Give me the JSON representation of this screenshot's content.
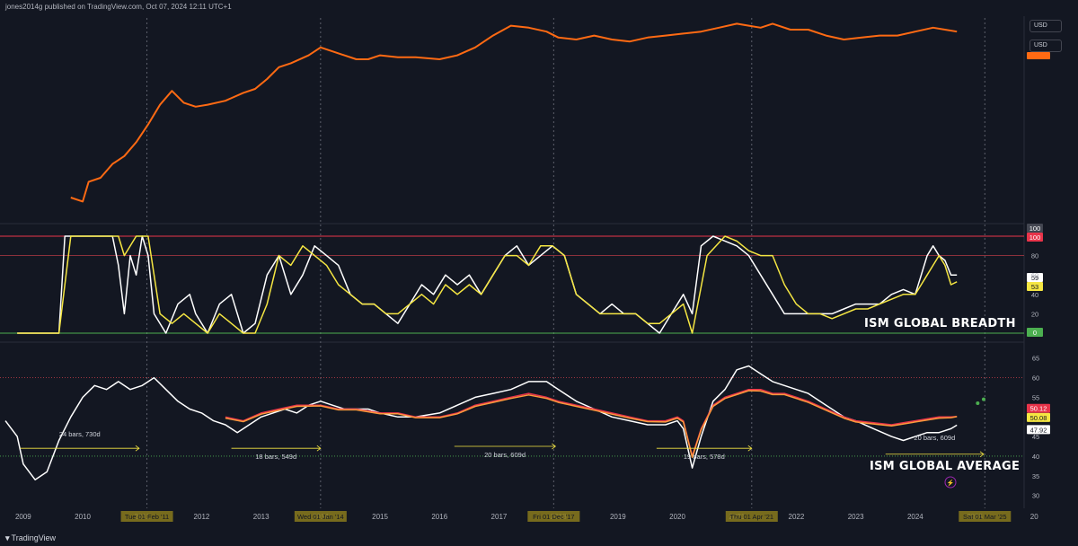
{
  "header": {
    "publisher": "jones2014g published on TradingView.com, Oct 07, 2024 12:11 UTC+1"
  },
  "footer": {
    "logo_text": "TradingView"
  },
  "currency": {
    "top": "USD",
    "second": "USD"
  },
  "colors": {
    "background": "#131722",
    "orange": "#ff6a13",
    "yellow": "#f5e642",
    "white": "#ffffff",
    "red_line": "#e8344a",
    "green_line": "#4caf50"
  },
  "chart_data": [
    {
      "type": "line",
      "panel": "top",
      "title": "",
      "x_range": [
        2008.7,
        2025.8
      ],
      "y_range": [
        0,
        100
      ],
      "series": [
        {
          "color": "#ff6a13",
          "x": [
            2009.8,
            2010.0,
            2010.1,
            2010.3,
            2010.5,
            2010.7,
            2010.9,
            2011.1,
            2011.3,
            2011.5,
            2011.7,
            2011.9,
            2012.1,
            2012.4,
            2012.7,
            2012.9,
            2013.1,
            2013.3,
            2013.5,
            2013.8,
            2014.0,
            2014.2,
            2014.4,
            2014.6,
            2014.8,
            2015.0,
            2015.3,
            2015.6,
            2016.0,
            2016.3,
            2016.6,
            2016.9,
            2017.2,
            2017.5,
            2017.8,
            2018.0,
            2018.3,
            2018.6,
            2018.9,
            2019.2,
            2019.5,
            2019.8,
            2020.1,
            2020.4,
            2020.7,
            2021.0,
            2021.2,
            2021.4,
            2021.6,
            2021.9,
            2022.2,
            2022.5,
            2022.8,
            2023.1,
            2023.4,
            2023.7,
            2024.0,
            2024.3,
            2024.5,
            2024.7
          ],
          "y": [
            10,
            8,
            18,
            20,
            27,
            31,
            38,
            47,
            57,
            64,
            58,
            56,
            57,
            59,
            63,
            65,
            70,
            76,
            78,
            82,
            86,
            84,
            82,
            80,
            80,
            82,
            81,
            81,
            80,
            82,
            86,
            92,
            97,
            96,
            94,
            91,
            90,
            92,
            90,
            89,
            91,
            92,
            93,
            94,
            96,
            98,
            97,
            96,
            98,
            95,
            95,
            92,
            90,
            91,
            92,
            92,
            94,
            96,
            95,
            94
          ]
        }
      ]
    },
    {
      "type": "line",
      "panel": "middle",
      "title": "ISM GLOBAL BREADTH",
      "x_range": [
        2008.7,
        2025.8
      ],
      "y_range": [
        0,
        100
      ],
      "y_ticks": [
        0,
        20,
        40,
        60,
        80,
        100
      ],
      "reference_lines": [
        100,
        80,
        0
      ],
      "series": [
        {
          "color": "#ffffff",
          "x": [
            2008.9,
            2009.4,
            2009.6,
            2009.7,
            2010.0,
            2010.3,
            2010.5,
            2010.6,
            2010.7,
            2010.8,
            2010.9,
            2011.0,
            2011.1,
            2011.2,
            2011.4,
            2011.6,
            2011.8,
            2011.9,
            2012.1,
            2012.3,
            2012.5,
            2012.7,
            2012.9,
            2013.1,
            2013.3,
            2013.5,
            2013.7,
            2013.9,
            2014.1,
            2014.3,
            2014.5,
            2014.7,
            2014.9,
            2015.1,
            2015.3,
            2015.5,
            2015.7,
            2015.9,
            2016.1,
            2016.3,
            2016.5,
            2016.7,
            2016.9,
            2017.1,
            2017.3,
            2017.5,
            2017.7,
            2017.9,
            2018.1,
            2018.3,
            2018.5,
            2018.7,
            2018.9,
            2019.1,
            2019.3,
            2019.5,
            2019.7,
            2019.9,
            2020.1,
            2020.25,
            2020.4,
            2020.6,
            2020.8,
            2021.0,
            2021.2,
            2021.4,
            2021.6,
            2021.8,
            2022.0,
            2022.2,
            2022.4,
            2022.6,
            2022.8,
            2023.0,
            2023.2,
            2023.4,
            2023.6,
            2023.8,
            2024.0,
            2024.1,
            2024.2,
            2024.3,
            2024.4,
            2024.5,
            2024.6,
            2024.7
          ],
          "y": [
            0,
            0,
            0,
            100,
            100,
            100,
            100,
            70,
            20,
            80,
            60,
            100,
            80,
            20,
            0,
            30,
            40,
            20,
            0,
            30,
            40,
            0,
            10,
            60,
            80,
            40,
            60,
            90,
            80,
            70,
            40,
            30,
            30,
            20,
            10,
            30,
            50,
            40,
            60,
            50,
            60,
            40,
            60,
            80,
            90,
            70,
            80,
            90,
            80,
            40,
            30,
            20,
            30,
            20,
            20,
            10,
            0,
            20,
            40,
            20,
            90,
            100,
            95,
            90,
            80,
            60,
            40,
            20,
            20,
            20,
            20,
            20,
            25,
            30,
            30,
            30,
            40,
            45,
            40,
            60,
            80,
            90,
            80,
            75,
            60,
            60
          ]
        },
        {
          "color": "#f5e642",
          "x": [
            2008.9,
            2009.6,
            2009.8,
            2010.0,
            2010.6,
            2010.7,
            2010.9,
            2011.1,
            2011.3,
            2011.5,
            2011.7,
            2011.9,
            2012.1,
            2012.3,
            2012.5,
            2012.7,
            2012.9,
            2013.1,
            2013.3,
            2013.5,
            2013.7,
            2013.9,
            2014.1,
            2014.3,
            2014.5,
            2014.7,
            2014.9,
            2015.1,
            2015.3,
            2015.5,
            2015.7,
            2015.9,
            2016.1,
            2016.3,
            2016.5,
            2016.7,
            2016.9,
            2017.1,
            2017.3,
            2017.5,
            2017.7,
            2017.9,
            2018.1,
            2018.3,
            2018.5,
            2018.7,
            2018.9,
            2019.1,
            2019.3,
            2019.5,
            2019.7,
            2019.9,
            2020.1,
            2020.25,
            2020.5,
            2020.8,
            2021.0,
            2021.2,
            2021.4,
            2021.6,
            2021.8,
            2022.0,
            2022.2,
            2022.4,
            2022.6,
            2022.8,
            2023.0,
            2023.2,
            2023.4,
            2023.6,
            2023.8,
            2024.0,
            2024.1,
            2024.2,
            2024.3,
            2024.4,
            2024.5,
            2024.6,
            2024.7
          ],
          "y": [
            0,
            0,
            100,
            100,
            100,
            80,
            100,
            100,
            20,
            10,
            20,
            10,
            0,
            20,
            10,
            0,
            0,
            30,
            80,
            70,
            90,
            80,
            70,
            50,
            40,
            30,
            30,
            20,
            20,
            30,
            40,
            30,
            50,
            40,
            50,
            40,
            60,
            80,
            80,
            70,
            90,
            90,
            80,
            40,
            30,
            20,
            20,
            20,
            20,
            10,
            10,
            20,
            30,
            0,
            80,
            100,
            95,
            85,
            80,
            80,
            50,
            30,
            20,
            20,
            15,
            20,
            25,
            25,
            30,
            35,
            40,
            40,
            50,
            60,
            70,
            80,
            70,
            50,
            53
          ]
        }
      ],
      "value_labels": [
        "100",
        "100",
        "59",
        "53",
        "0"
      ],
      "tick_labels": [
        "80",
        "60",
        "40",
        "20"
      ]
    },
    {
      "type": "line",
      "panel": "bottom",
      "title": "ISM GLOBAL AVERAGE",
      "x_range": [
        2008.7,
        2025.8
      ],
      "y_range": [
        29,
        67
      ],
      "y_ticks": [
        30,
        35,
        40,
        45,
        50,
        55,
        60,
        65
      ],
      "tick_labels": [
        "65",
        "60",
        "55",
        "45",
        "40",
        "35",
        "30"
      ],
      "reference_lines": [
        60,
        40
      ],
      "series": [
        {
          "color": "#ffffff",
          "x": [
            2008.7,
            2008.9,
            2009.0,
            2009.2,
            2009.4,
            2009.6,
            2009.8,
            2010.0,
            2010.2,
            2010.4,
            2010.6,
            2010.8,
            2011.0,
            2011.2,
            2011.4,
            2011.6,
            2011.8,
            2012.0,
            2012.2,
            2012.4,
            2012.6,
            2012.8,
            2013.0,
            2013.2,
            2013.4,
            2013.6,
            2013.8,
            2014.0,
            2014.2,
            2014.4,
            2014.6,
            2014.8,
            2015.0,
            2015.3,
            2015.6,
            2016.0,
            2016.3,
            2016.6,
            2016.9,
            2017.2,
            2017.5,
            2017.8,
            2018.0,
            2018.3,
            2018.6,
            2018.9,
            2019.2,
            2019.5,
            2019.8,
            2020.0,
            2020.1,
            2020.25,
            2020.4,
            2020.6,
            2020.8,
            2021.0,
            2021.2,
            2021.4,
            2021.6,
            2021.8,
            2022.0,
            2022.2,
            2022.5,
            2022.8,
            2023.0,
            2023.3,
            2023.6,
            2023.8,
            2024.0,
            2024.2,
            2024.4,
            2024.6,
            2024.7
          ],
          "y": [
            49,
            45,
            38,
            34,
            36,
            44,
            50,
            55,
            58,
            57,
            59,
            57,
            58,
            60,
            57,
            54,
            52,
            51,
            49,
            48,
            46,
            48,
            50,
            51,
            52,
            51,
            53,
            54,
            53,
            52,
            52,
            52,
            51,
            50,
            50,
            51,
            53,
            55,
            56,
            57,
            59,
            59,
            57,
            54,
            52,
            50,
            49,
            48,
            48,
            49,
            47,
            37,
            45,
            54,
            57,
            62,
            63,
            61,
            59,
            58,
            57,
            56,
            53,
            50,
            49,
            47,
            45,
            44,
            45,
            46,
            46,
            47,
            47.9
          ]
        },
        {
          "color": "#e8344a",
          "x": [
            2012.4,
            2012.7,
            2013.0,
            2013.3,
            2013.6,
            2014.0,
            2014.3,
            2014.6,
            2015.0,
            2015.3,
            2015.6,
            2016.0,
            2016.3,
            2016.6,
            2016.9,
            2017.2,
            2017.5,
            2017.8,
            2018.0,
            2018.3,
            2018.6,
            2018.9,
            2019.2,
            2019.5,
            2019.8,
            2020.0,
            2020.1,
            2020.25,
            2020.4,
            2020.6,
            2020.8,
            2021.0,
            2021.2,
            2021.4,
            2021.6,
            2021.8,
            2022.0,
            2022.2,
            2022.5,
            2022.8,
            2023.0,
            2023.3,
            2023.6,
            2023.8,
            2024.0,
            2024.2,
            2024.4,
            2024.6,
            2024.7
          ],
          "y": [
            50,
            49,
            51,
            52,
            53,
            53,
            52,
            52,
            51,
            51,
            50,
            50,
            51,
            53,
            54,
            55,
            56,
            55,
            54,
            53,
            52,
            51,
            50,
            49,
            49,
            50,
            49,
            40,
            47,
            53,
            55,
            56,
            57,
            57,
            56,
            56,
            55,
            54,
            52,
            50,
            49,
            48.5,
            48,
            48.5,
            49,
            49.5,
            50,
            50,
            50.1
          ]
        },
        {
          "color": "#ff9a3c",
          "x": [
            2012.4,
            2012.7,
            2013.0,
            2013.3,
            2013.6,
            2014.0,
            2014.3,
            2014.6,
            2015.0,
            2015.3,
            2015.6,
            2016.0,
            2016.3,
            2016.6,
            2016.9,
            2017.2,
            2017.5,
            2017.8,
            2018.0,
            2018.3,
            2018.6,
            2018.9,
            2019.2,
            2019.5,
            2019.8,
            2020.0,
            2020.1,
            2020.25,
            2020.4,
            2020.6,
            2020.8,
            2021.0,
            2021.2,
            2021.4,
            2021.6,
            2021.8,
            2022.0,
            2022.2,
            2022.5,
            2022.8,
            2023.0,
            2023.3,
            2023.6,
            2023.8,
            2024.0,
            2024.2,
            2024.4,
            2024.6,
            2024.7
          ],
          "y": [
            49.7,
            48.8,
            50.7,
            51.7,
            52.7,
            52.8,
            51.8,
            51.8,
            50.8,
            50.8,
            49.8,
            49.8,
            50.8,
            52.7,
            53.7,
            54.7,
            55.6,
            54.7,
            53.7,
            52.7,
            51.7,
            50.7,
            49.7,
            48.8,
            48.7,
            49.7,
            48.7,
            39.7,
            46.7,
            52.7,
            54.7,
            55.7,
            56.7,
            56.6,
            55.7,
            55.7,
            54.7,
            53.7,
            51.7,
            49.7,
            48.7,
            48.2,
            47.7,
            48.2,
            48.7,
            49.2,
            49.7,
            49.8,
            50.08
          ]
        }
      ],
      "dots": [
        {
          "x": 2025.05,
          "y": 53.5
        },
        {
          "x": 2025.15,
          "y": 54.5
        }
      ],
      "value_labels": [
        "50.12",
        "50.08",
        "47.92"
      ],
      "cycle_annotations": [
        {
          "label": "24 bars, 730d",
          "x0": 2008.95,
          "x1": 2010.95,
          "y": 42
        },
        {
          "label": "18 bars, 549d",
          "x0": 2012.5,
          "x1": 2014.0,
          "y": 42
        },
        {
          "label": "20 bars, 609d",
          "x0": 2016.25,
          "x1": 2017.95,
          "y": 42.5
        },
        {
          "label": "19 bars, 578d",
          "x0": 2019.65,
          "x1": 2021.25,
          "y": 42
        },
        {
          "label": "20 bars, 609d",
          "x0": 2023.5,
          "x1": 2025.15,
          "y": 40.5
        }
      ]
    }
  ],
  "x_axis": {
    "labels": [
      "2009",
      "2010",
      "2011",
      "2012",
      "2013",
      "2014",
      "2015",
      "2016",
      "2017",
      "2018",
      "2019",
      "2020",
      "2021",
      "2022",
      "2023",
      "2024",
      "2025",
      "20"
    ],
    "positions": [
      2009,
      2010,
      2011,
      2012,
      2013,
      2014,
      2015,
      2016,
      2017,
      2018,
      2019,
      2020,
      2021,
      2022,
      2023,
      2024,
      2025,
      2026
    ],
    "highlight_labels": [
      {
        "label": "Tue 01 Feb '11",
        "x": 2011.08
      },
      {
        "label": "Wed 01 Jan '14",
        "x": 2014.0
      },
      {
        "label": "Fri 01 Dec '17",
        "x": 2017.92
      },
      {
        "label": "Thu 01 Apr '21",
        "x": 2021.25
      },
      {
        "label": "Sat 01 Mar '25",
        "x": 2025.17
      }
    ]
  }
}
